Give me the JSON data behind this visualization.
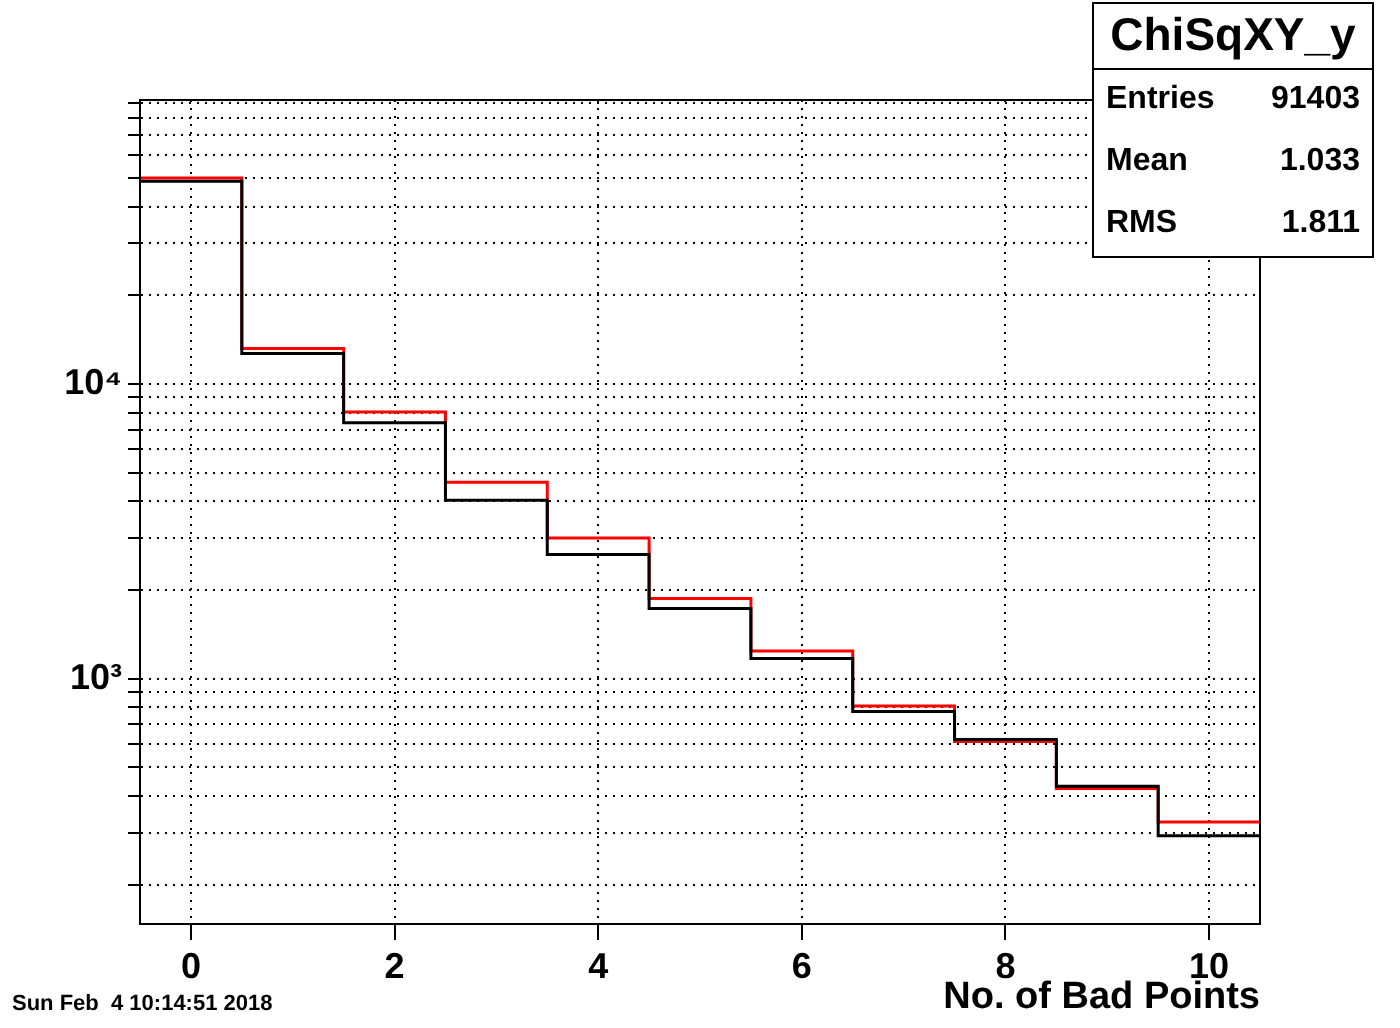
{
  "chart_data": {
    "type": "histogram",
    "title": "ChiSqXY_y",
    "xlabel": "No. of Bad Points",
    "bins": [
      -0.5,
      0.5,
      1.5,
      2.5,
      3.5,
      4.5,
      5.5,
      6.5,
      7.5,
      8.5,
      9.5,
      10.5
    ],
    "series": [
      {
        "color": "#000000",
        "values": [
          48800,
          12700,
          7380,
          4030,
          2640,
          1730,
          1170,
          774,
          621,
          431,
          293
        ]
      },
      {
        "color": "#ff0000",
        "values": [
          50000,
          13200,
          8040,
          4640,
          3000,
          1870,
          1240,
          807,
          612,
          424,
          326
        ]
      }
    ],
    "xlim": [
      -0.5,
      10.5
    ],
    "xticks": [
      0,
      2,
      4,
      6,
      8,
      10
    ],
    "ylim": [
      147,
      92000
    ],
    "yticks": [
      {
        "value": 200,
        "label": null
      },
      {
        "value": 300,
        "label": null
      },
      {
        "value": 400,
        "label": null
      },
      {
        "value": 500,
        "label": null
      },
      {
        "value": 600,
        "label": null
      },
      {
        "value": 700,
        "label": null
      },
      {
        "value": 800,
        "label": null
      },
      {
        "value": 900,
        "label": null
      },
      {
        "value": 1000,
        "label": "10³"
      },
      {
        "value": 2000,
        "label": null
      },
      {
        "value": 3000,
        "label": null
      },
      {
        "value": 4000,
        "label": null
      },
      {
        "value": 5000,
        "label": null
      },
      {
        "value": 6000,
        "label": null
      },
      {
        "value": 7000,
        "label": null
      },
      {
        "value": 8000,
        "label": null
      },
      {
        "value": 9000,
        "label": null
      },
      {
        "value": 10000,
        "label": "10⁴"
      },
      {
        "value": 20000,
        "label": null
      },
      {
        "value": 30000,
        "label": null
      },
      {
        "value": 40000,
        "label": null
      },
      {
        "value": 50000,
        "label": null
      },
      {
        "value": 60000,
        "label": null
      },
      {
        "value": 70000,
        "label": null
      },
      {
        "value": 80000,
        "label": null
      },
      {
        "value": 90000,
        "label": null
      }
    ],
    "log": true,
    "grid": true,
    "annotations": [
      "Entries",
      "91403",
      "Mean",
      "1.033",
      "RMS",
      "1.811",
      "Sun Feb  4 10:14:51 2018"
    ]
  }
}
